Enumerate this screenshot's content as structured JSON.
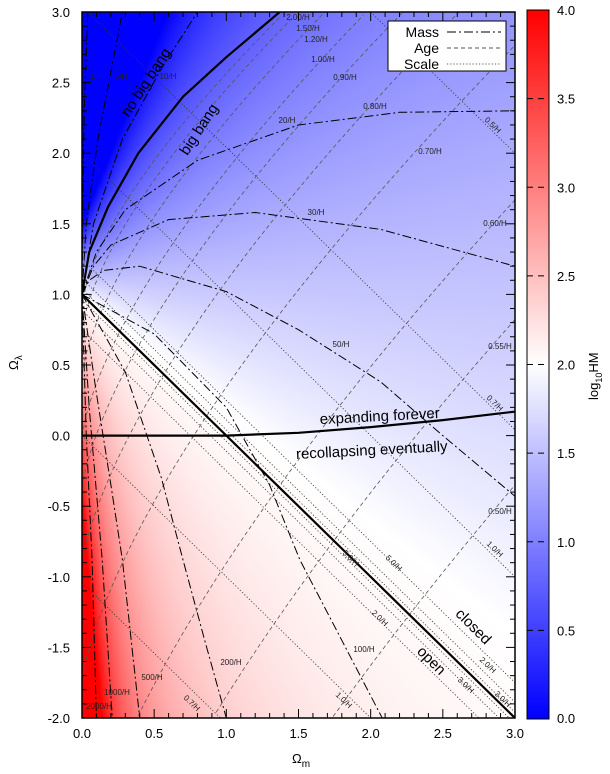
{
  "chart_data": {
    "type": "contour",
    "xlabel": {
      "symbol": "Ω",
      "sub": "m"
    },
    "ylabel": {
      "symbol": "Ω",
      "sub": "λ"
    },
    "xlim": [
      0,
      3
    ],
    "ylim": [
      -2,
      3
    ],
    "xticks": [
      "0.0",
      "0.5",
      "1.0",
      "1.5",
      "2.0",
      "2.5",
      "3.0"
    ],
    "yticks": [
      "-2.0",
      "-1.5",
      "-1.0",
      "-0.5",
      "0.0",
      "0.5",
      "1.0",
      "1.5",
      "2.0",
      "2.5",
      "3.0"
    ],
    "grid": false,
    "colorbar": {
      "label": {
        "pre": "log",
        "sub": "10",
        "post": "HM"
      },
      "range": [
        0,
        4
      ],
      "ticks": [
        "0.0",
        "0.5",
        "1.0",
        "1.5",
        "2.0",
        "2.5",
        "3.0",
        "3.5",
        "4.0"
      ],
      "colors": {
        "low": "#0000ff",
        "mid": "#ffffff",
        "high": "#ff0000"
      }
    },
    "legend": {
      "placement": "top-right",
      "entries": [
        {
          "name": "Mass",
          "style": "dash-dot"
        },
        {
          "name": "Age",
          "style": "dashed"
        },
        {
          "name": "Scale",
          "style": "dotted"
        }
      ]
    },
    "mass_contours": [
      {
        "label": "1/H",
        "points": [
          [
            0,
            1
          ],
          [
            0.005,
            1.6
          ],
          [
            0.015,
            2.3
          ],
          [
            0.04,
            3
          ]
        ]
      },
      {
        "label": "5/H",
        "points": [
          [
            0,
            1
          ],
          [
            0.03,
            1.5
          ],
          [
            0.11,
            2.1
          ],
          [
            0.28,
            3
          ]
        ]
      },
      {
        "label": "10/H",
        "points": [
          [
            0,
            1
          ],
          [
            0.08,
            1.5
          ],
          [
            0.28,
            2.1
          ],
          [
            0.55,
            2.6
          ],
          [
            0.8,
            3
          ]
        ]
      },
      {
        "label": "20/H",
        "points": [
          [
            0,
            1
          ],
          [
            0.1,
            1.3
          ],
          [
            0.3,
            1.6
          ],
          [
            0.8,
            1.95
          ],
          [
            1.5,
            2.2
          ],
          [
            2.2,
            2.29
          ],
          [
            3,
            2.3
          ]
        ]
      },
      {
        "label": "30/H",
        "points": [
          [
            0,
            1
          ],
          [
            0.08,
            1.2
          ],
          [
            0.2,
            1.35
          ],
          [
            0.6,
            1.53
          ],
          [
            1.2,
            1.58
          ],
          [
            2.07,
            1.46
          ],
          [
            3,
            1.2
          ]
        ]
      },
      {
        "label": "50/H",
        "points": [
          [
            0,
            1
          ],
          [
            0.05,
            1.1
          ],
          [
            0.15,
            1.17
          ],
          [
            0.4,
            1.2
          ],
          [
            1,
            1.02
          ],
          [
            1.5,
            0.75
          ],
          [
            2.07,
            0.38
          ],
          [
            2.5,
            0.0
          ],
          [
            3,
            -0.43
          ]
        ]
      },
      {
        "label": "100/H",
        "points": [
          [
            0,
            1
          ],
          [
            0.5,
            0.72
          ],
          [
            1,
            0.2
          ],
          [
            1.3,
            -0.35
          ],
          [
            1.51,
            -0.88
          ],
          [
            1.8,
            -1.45
          ],
          [
            2.08,
            -2
          ]
        ]
      },
      {
        "label": "200/H",
        "points": [
          [
            0,
            1
          ],
          [
            0.3,
            0.45
          ],
          [
            0.55,
            -0.3
          ],
          [
            0.7,
            -0.88
          ],
          [
            0.85,
            -1.45
          ],
          [
            1.0,
            -2
          ]
        ]
      },
      {
        "label": "500/H",
        "points": [
          [
            0,
            1
          ],
          [
            0.1,
            0.3
          ],
          [
            0.2,
            -0.35
          ],
          [
            0.28,
            -0.88
          ],
          [
            0.4,
            -2
          ]
        ]
      },
      {
        "label": "1000/H",
        "points": [
          [
            0,
            1
          ],
          [
            0.05,
            0.2
          ],
          [
            0.1,
            -0.4
          ],
          [
            0.14,
            -0.88
          ],
          [
            0.21,
            -2
          ]
        ]
      },
      {
        "label": "2000/H",
        "points": [
          [
            0,
            1
          ],
          [
            0.03,
            0
          ],
          [
            0.07,
            -0.88
          ],
          [
            0.1,
            -2
          ]
        ]
      }
    ],
    "age_contours": [
      {
        "label": "2.00/H",
        "value": 2.0
      },
      {
        "label": "1.50/H",
        "value": 1.5
      },
      {
        "label": "1.20/H",
        "value": 1.2
      },
      {
        "label": "1.00/H",
        "value": 1.0
      },
      {
        "label": "0.90/H",
        "value": 0.9
      },
      {
        "label": "0.80/H",
        "value": 0.8
      },
      {
        "label": "0.70/H",
        "value": 0.7
      },
      {
        "label": "0.60/H",
        "value": 0.6
      },
      {
        "label": "0.55/H",
        "value": 0.55
      },
      {
        "label": "0.50/H",
        "value": 0.5
      }
    ],
    "scale_contours": [
      {
        "label": "0.5/H",
        "radius": 0.5,
        "side": "closed"
      },
      {
        "label": "0.7/H",
        "radius": 0.7,
        "side": "closed"
      },
      {
        "label": "1.0/H",
        "radius": 1.0,
        "side": "closed"
      },
      {
        "label": "2.0/H",
        "radius": 2.0,
        "side": "closed"
      },
      {
        "label": "3.0/H",
        "radius": 3.0,
        "side": "closed"
      },
      {
        "label": "5.0/H",
        "radius": 5.0,
        "side": "closed"
      },
      {
        "label": "5.0/H",
        "radius": 5.0,
        "side": "open"
      },
      {
        "label": "3.0/H",
        "radius": 3.0,
        "side": "open"
      },
      {
        "label": "2.0/H",
        "radius": 2.0,
        "side": "open"
      },
      {
        "label": "1.0/H",
        "radius": 1.0,
        "side": "open"
      },
      {
        "label": "0.7/H",
        "radius": 0.7,
        "side": "open"
      }
    ],
    "boundaries": {
      "big_bang": [
        [
          0,
          1
        ],
        [
          0.05,
          1.3
        ],
        [
          0.18,
          1.62
        ],
        [
          0.39,
          2.0
        ],
        [
          0.7,
          2.4
        ],
        [
          1.0,
          2.68
        ],
        [
          1.37,
          3.0
        ]
      ],
      "flat": [
        [
          0,
          1
        ],
        [
          3,
          -2
        ]
      ],
      "expansion": [
        [
          0,
          0
        ],
        [
          1,
          0
        ],
        [
          1.5,
          0.02
        ],
        [
          2,
          0.06
        ],
        [
          2.5,
          0.11
        ],
        [
          3,
          0.17
        ]
      ]
    },
    "annotations": {
      "no_big_bang": "no big bang",
      "big_bang": "big bang",
      "expanding": "expanding forever",
      "recollapsing": "recollapsing eventually",
      "closed": "closed",
      "open": "open"
    }
  }
}
